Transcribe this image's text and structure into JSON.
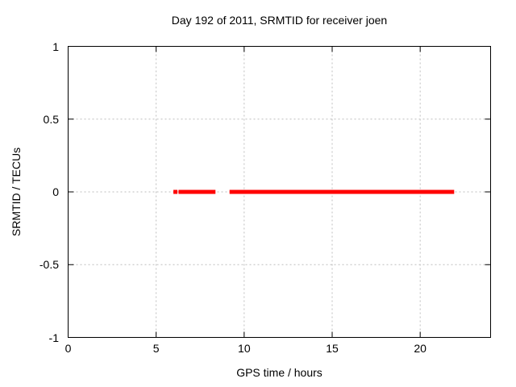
{
  "chart_data": {
    "type": "line",
    "title": "Day 192 of 2011, SRMTID for receiver joen",
    "xlabel": "GPS time / hours",
    "ylabel": "SRMTID / TECUs",
    "xlim": [
      0,
      24
    ],
    "ylim": [
      -1,
      1
    ],
    "xticks": [
      0,
      5,
      10,
      15,
      20
    ],
    "yticks": [
      1,
      0.5,
      0,
      -0.5,
      -1
    ],
    "grid": true,
    "legend": "none",
    "series": [
      {
        "name": "SRMTID",
        "color": "#ff0000",
        "style": "thick flat segments plotted at constant value",
        "y_value": 0,
        "segments_x_hours": [
          [
            5.98,
            6.21
          ],
          [
            6.27,
            8.37
          ],
          [
            9.17,
            21.93
          ]
        ]
      }
    ],
    "colors": {
      "data": "#ff0000",
      "grid": "#bebebe",
      "border": "#000000",
      "background": "#ffffff",
      "text": "#000000"
    }
  }
}
